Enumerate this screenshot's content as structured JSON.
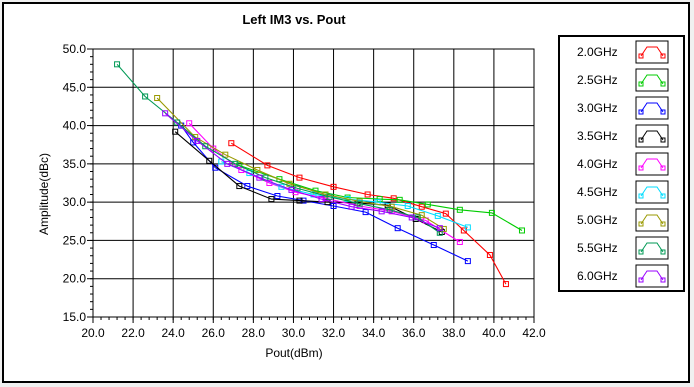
{
  "chart_data": {
    "type": "line",
    "title": "Left IM3 vs. Pout",
    "xlabel": "Pout(dBm)",
    "ylabel": "Amplitude(dBc)",
    "xlim": [
      20.0,
      42.0
    ],
    "ylim": [
      15.0,
      50.0
    ],
    "x_ticks": [
      "20.0",
      "22.0",
      "24.0",
      "26.0",
      "28.0",
      "30.0",
      "32.0",
      "34.0",
      "36.0",
      "38.0",
      "40.0",
      "42.0"
    ],
    "y_ticks": [
      "15.0",
      "20.0",
      "25.0",
      "30.0",
      "35.0",
      "40.0",
      "45.0",
      "50.0"
    ],
    "grid": true,
    "legend_position": "right",
    "series": [
      {
        "name": "2.0GHz",
        "color": "#ff0000",
        "points": [
          [
            26.9,
            37.7
          ],
          [
            28.7,
            34.8
          ],
          [
            30.3,
            33.2
          ],
          [
            32.0,
            32.0
          ],
          [
            33.7,
            31.0
          ],
          [
            35.0,
            30.5
          ],
          [
            36.4,
            29.4
          ],
          [
            37.6,
            28.5
          ],
          [
            38.5,
            26.3
          ],
          [
            39.8,
            23.1
          ],
          [
            40.6,
            19.3
          ]
        ]
      },
      {
        "name": "2.5GHz",
        "color": "#00cc00",
        "points": [
          [
            27.3,
            34.8
          ],
          [
            29.3,
            33.0
          ],
          [
            31.1,
            31.5
          ],
          [
            32.7,
            30.6
          ],
          [
            34.3,
            30.4
          ],
          [
            35.3,
            30.3
          ],
          [
            36.7,
            29.7
          ],
          [
            38.3,
            29.0
          ],
          [
            39.9,
            28.6
          ],
          [
            41.4,
            26.3
          ]
        ]
      },
      {
        "name": "3.0GHz",
        "color": "#0000ff",
        "points": [
          [
            24.4,
            40.0
          ],
          [
            25.0,
            37.8
          ],
          [
            26.1,
            34.5
          ],
          [
            27.7,
            32.1
          ],
          [
            29.2,
            30.8
          ],
          [
            30.5,
            30.2
          ],
          [
            32.0,
            29.5
          ],
          [
            33.6,
            28.7
          ],
          [
            35.2,
            26.6
          ],
          [
            37.0,
            24.4
          ],
          [
            38.7,
            22.3
          ]
        ]
      },
      {
        "name": "3.5GHz",
        "color": "#000000",
        "points": [
          [
            24.1,
            39.2
          ],
          [
            25.8,
            35.4
          ],
          [
            27.3,
            32.1
          ],
          [
            28.9,
            30.4
          ],
          [
            30.3,
            30.2
          ],
          [
            31.7,
            30.0
          ],
          [
            33.2,
            29.9
          ],
          [
            34.7,
            29.6
          ],
          [
            36.1,
            27.8
          ],
          [
            37.4,
            26.1
          ]
        ]
      },
      {
        "name": "4.0GHz",
        "color": "#ff00ff",
        "points": [
          [
            24.8,
            40.3
          ],
          [
            26.0,
            37.0
          ],
          [
            27.4,
            34.2
          ],
          [
            28.8,
            32.5
          ],
          [
            30.1,
            31.3
          ],
          [
            31.6,
            30.5
          ],
          [
            33.3,
            29.5
          ],
          [
            34.9,
            28.8
          ],
          [
            36.6,
            27.6
          ],
          [
            38.3,
            24.8
          ]
        ]
      },
      {
        "name": "4.5GHz",
        "color": "#00ddff",
        "points": [
          [
            26.4,
            35.3
          ],
          [
            27.8,
            33.8
          ],
          [
            29.4,
            32.0
          ],
          [
            31.0,
            31.0
          ],
          [
            32.7,
            30.4
          ],
          [
            34.2,
            30.0
          ],
          [
            35.7,
            29.5
          ],
          [
            37.2,
            28.2
          ],
          [
            38.7,
            26.7
          ]
        ]
      },
      {
        "name": "5.0GHz",
        "color": "#999900",
        "points": [
          [
            23.2,
            43.6
          ],
          [
            25.1,
            38.5
          ],
          [
            26.6,
            36.2
          ],
          [
            28.2,
            34.2
          ],
          [
            29.8,
            32.4
          ],
          [
            31.6,
            31.0
          ],
          [
            33.3,
            30.1
          ],
          [
            34.9,
            29.4
          ],
          [
            36.4,
            28.3
          ],
          [
            37.5,
            26.5
          ]
        ]
      },
      {
        "name": "5.5GHz",
        "color": "#009955",
        "points": [
          [
            21.2,
            48.0
          ],
          [
            22.6,
            43.8
          ],
          [
            24.2,
            40.4
          ],
          [
            25.6,
            37.3
          ],
          [
            27.1,
            35.0
          ],
          [
            28.6,
            33.2
          ],
          [
            30.2,
            31.8
          ],
          [
            31.8,
            30.7
          ],
          [
            33.3,
            29.8
          ],
          [
            34.8,
            29.0
          ],
          [
            36.2,
            28.0
          ],
          [
            37.3,
            26.0
          ]
        ]
      },
      {
        "name": "6.0GHz",
        "color": "#9900ff",
        "points": [
          [
            23.6,
            41.6
          ],
          [
            25.2,
            38.0
          ],
          [
            26.7,
            35.0
          ],
          [
            28.3,
            33.2
          ],
          [
            29.9,
            31.6
          ],
          [
            31.4,
            30.4
          ],
          [
            32.9,
            29.4
          ],
          [
            34.4,
            28.8
          ],
          [
            35.9,
            28.0
          ],
          [
            37.3,
            26.6
          ]
        ]
      }
    ]
  }
}
